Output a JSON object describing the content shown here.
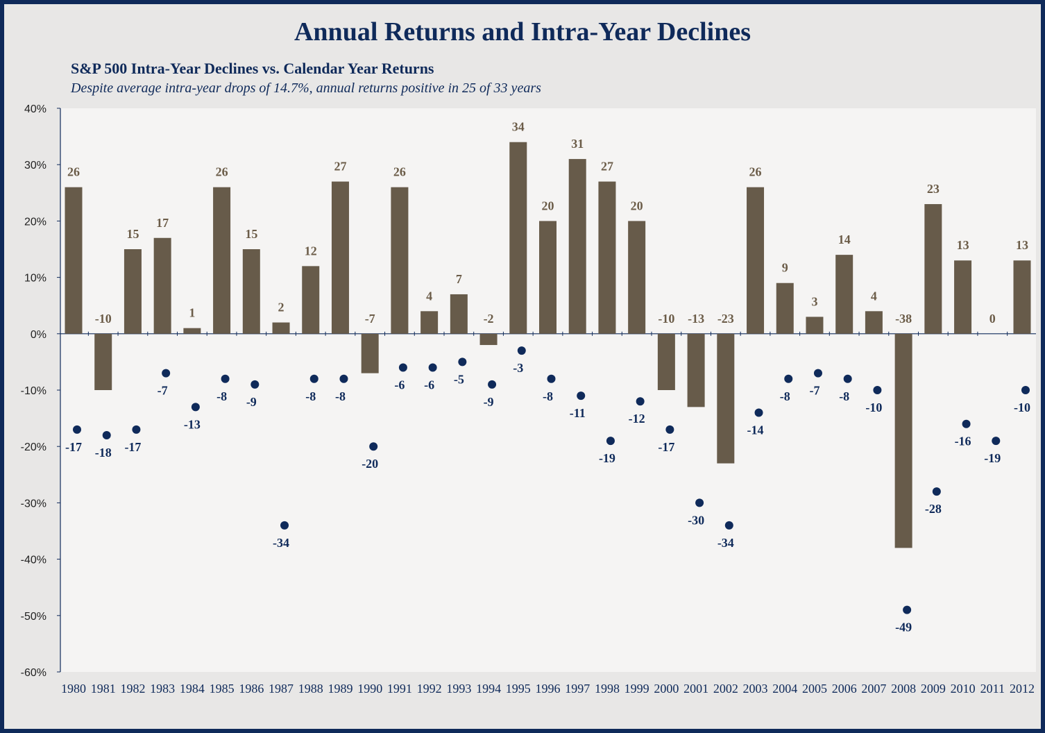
{
  "title": "Annual Returns and Intra-Year Declines",
  "subtitle": "S&P 500 Intra-Year Declines vs. Calendar Year Returns",
  "note": "Despite average intra-year drops of 14.7%, annual returns  positive in 25 of 33 years",
  "colors": {
    "bar": "#675b4a",
    "bar_label": "#6b5c48",
    "dot": "#0f2a5a",
    "frame": "#0f2a5a",
    "plot_bg": "#f5f4f3",
    "outer_bg": "#e8e7e6"
  },
  "chart_data": {
    "type": "bar",
    "ylim": [
      -60,
      40
    ],
    "yticks": [
      40,
      30,
      20,
      10,
      0,
      -10,
      -20,
      -30,
      -40,
      -50,
      -60
    ],
    "ytick_labels": [
      "40%",
      "30%",
      "20%",
      "10%",
      "0%",
      "-10%",
      "-20%",
      "-30%",
      "-40%",
      "-50%",
      "-60%"
    ],
    "categories": [
      "1980",
      "1981",
      "1982",
      "1983",
      "1984",
      "1985",
      "1986",
      "1987",
      "1988",
      "1989",
      "1990",
      "1991",
      "1992",
      "1993",
      "1994",
      "1995",
      "1996",
      "1997",
      "1998",
      "1999",
      "2000",
      "2001",
      "2002",
      "2003",
      "2004",
      "2005",
      "2006",
      "2007",
      "2008",
      "2009",
      "2010",
      "2011",
      "2012"
    ],
    "series": [
      {
        "kind": "bar",
        "values": [
          26,
          -10,
          15,
          17,
          1,
          26,
          15,
          2,
          12,
          27,
          -7,
          26,
          4,
          7,
          -2,
          34,
          20,
          31,
          27,
          20,
          -10,
          -13,
          -23,
          26,
          9,
          3,
          14,
          4,
          -38,
          23,
          13,
          0,
          13
        ]
      },
      {
        "kind": "scatter",
        "values": [
          -17,
          -18,
          -17,
          -7,
          -13,
          -8,
          -9,
          -34,
          -8,
          -8,
          -20,
          -6,
          -6,
          -5,
          -9,
          -3,
          -8,
          -11,
          -19,
          -12,
          -17,
          -30,
          -34,
          -14,
          -8,
          -7,
          -8,
          -10,
          -49,
          -28,
          -16,
          -19,
          -10
        ]
      }
    ],
    "grid": false,
    "legend": "none"
  }
}
